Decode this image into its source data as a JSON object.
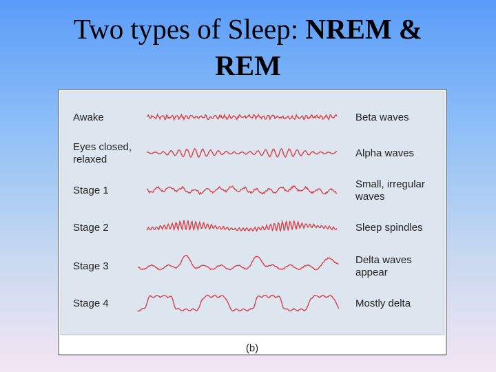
{
  "header": {
    "title_plain": "Two types of Sleep:",
    "title_bold_1": "NREM &",
    "title_bold_2": "REM"
  },
  "figure": {
    "rows": [
      {
        "label": [
          "Awake"
        ],
        "wave": [
          "Beta waves"
        ]
      },
      {
        "label": [
          "Eyes closed,",
          "relaxed"
        ],
        "wave": [
          "Alpha waves"
        ]
      },
      {
        "label": [
          "Stage 1"
        ],
        "wave": [
          "Small, irregular",
          "waves"
        ]
      },
      {
        "label": [
          "Stage 2"
        ],
        "wave": [
          "Sleep spindles"
        ]
      },
      {
        "label": [
          "Stage 3"
        ],
        "wave": [
          "Delta waves",
          "appear"
        ]
      },
      {
        "label": [
          "Stage 4"
        ],
        "wave": [
          "Mostly delta"
        ]
      }
    ],
    "caption": "(b)"
  }
}
